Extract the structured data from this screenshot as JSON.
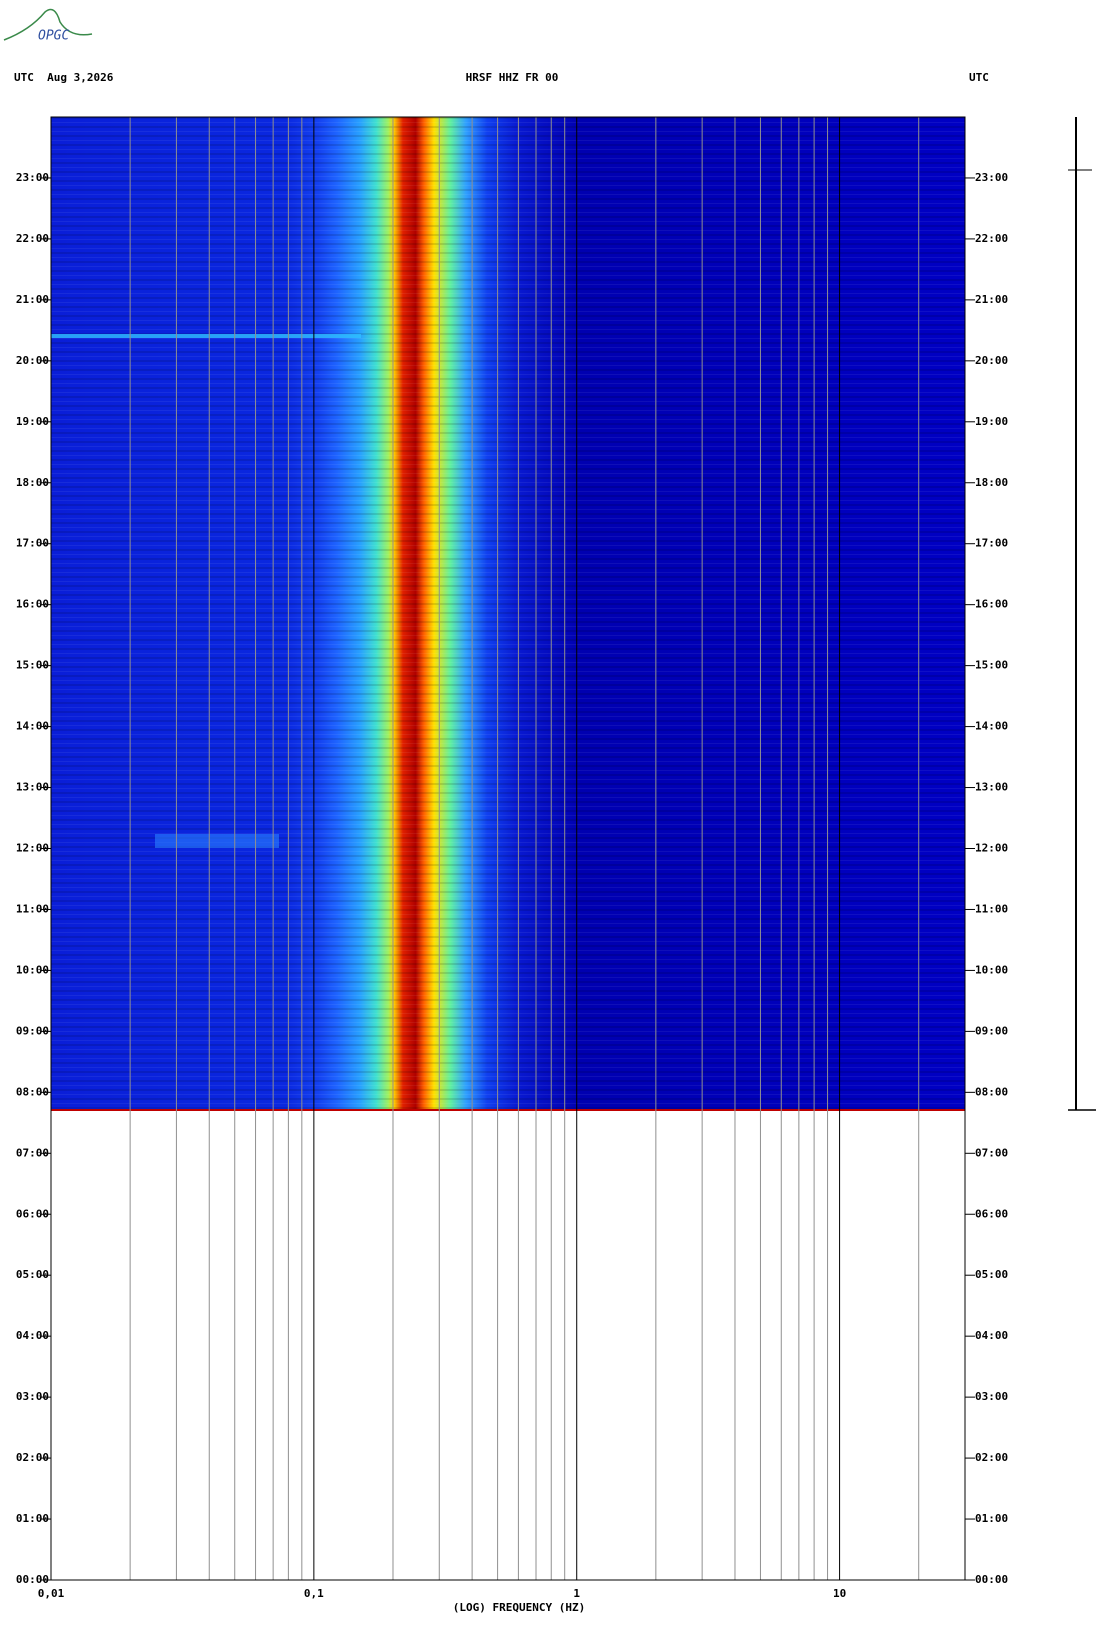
{
  "chart_data": {
    "type": "spectrogram",
    "logo": "OPGC",
    "header_left": "UTC  Aug 3,2026",
    "title": "HRSF HHZ FR 00",
    "header_right": "UTC",
    "x_label": "(LOG) FREQUENCY (HZ)",
    "x_log": true,
    "xlim": [
      0.01,
      30
    ],
    "xticks": [
      {
        "value": 0.01,
        "label": "0,01"
      },
      {
        "value": 0.1,
        "label": "0,1"
      },
      1,
      10
    ],
    "minor_xticks": [
      0.02,
      0.03,
      0.04,
      0.05,
      0.06,
      0.07,
      0.08,
      0.09,
      0.2,
      0.3,
      0.4,
      0.5,
      0.6,
      0.7,
      0.8,
      0.9,
      2,
      3,
      4,
      5,
      6,
      7,
      8,
      9,
      20
    ],
    "ylim": [
      0,
      24
    ],
    "yticks": [
      {
        "value": 0,
        "label": "00:00"
      },
      {
        "value": 1,
        "label": "01:00"
      },
      {
        "value": 2,
        "label": "02:00"
      },
      {
        "value": 3,
        "label": "03:00"
      },
      {
        "value": 4,
        "label": "04:00"
      },
      {
        "value": 5,
        "label": "05:00"
      },
      {
        "value": 6,
        "label": "06:00"
      },
      {
        "value": 7,
        "label": "07:00"
      },
      {
        "value": 8,
        "label": "08:00"
      },
      {
        "value": 9,
        "label": "09:00"
      },
      {
        "value": 10,
        "label": "10:00"
      },
      {
        "value": 11,
        "label": "11:00"
      },
      {
        "value": 12,
        "label": "12:00"
      },
      {
        "value": 13,
        "label": "13:00"
      },
      {
        "value": 14,
        "label": "14:00"
      },
      {
        "value": 15,
        "label": "15:00"
      },
      {
        "value": 16,
        "label": "16:00"
      },
      {
        "value": 17,
        "label": "17:00"
      },
      {
        "value": 18,
        "label": "18:00"
      },
      {
        "value": 19,
        "label": "19:00"
      },
      {
        "value": 20,
        "label": "20:00"
      },
      {
        "value": 21,
        "label": "21:00"
      },
      {
        "value": 22,
        "label": "22:00"
      },
      {
        "value": 23,
        "label": "23:00"
      }
    ]
  }
}
